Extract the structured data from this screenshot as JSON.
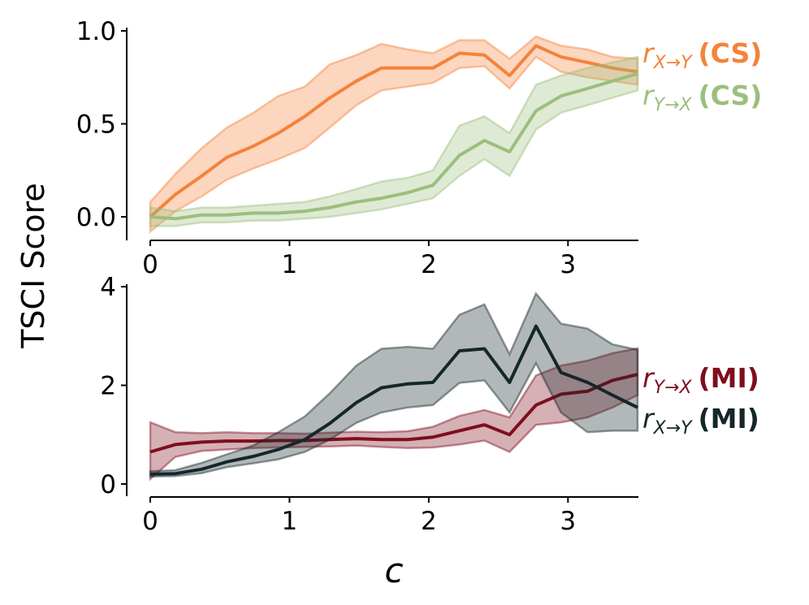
{
  "figure": {
    "ylabel": "TSCI Score",
    "xlabel": "c"
  },
  "colors": {
    "orange": "#f5823a",
    "green": "#9bbf7d",
    "dark": "#14272a",
    "maroon": "#7e0e1e"
  },
  "chart_data": [
    {
      "type": "line",
      "title": "",
      "xlabel": "",
      "ylabel": "",
      "xlim": [
        -0.1,
        3.5
      ],
      "ylim": [
        -0.13,
        1.01
      ],
      "xticks": [
        0,
        1,
        2,
        3
      ],
      "xtick_labels": [
        "0",
        "1",
        "2",
        "3"
      ],
      "yticks": [
        0.0,
        0.5,
        1.0
      ],
      "ytick_labels": [
        "0.0",
        "0.5",
        "1.0"
      ],
      "grid": false,
      "series": [
        {
          "name": "r_{X→Y} (CS)",
          "label_main": "r",
          "label_sub": "X→Y",
          "label_tag": "(CS)",
          "color_key": "orange",
          "x": [
            0,
            0.18,
            0.37,
            0.55,
            0.74,
            0.92,
            1.11,
            1.29,
            1.48,
            1.66,
            1.85,
            2.03,
            2.22,
            2.4,
            2.58,
            2.77,
            2.95,
            3.14,
            3.32,
            3.5
          ],
          "y": [
            0.0,
            0.12,
            0.22,
            0.32,
            0.38,
            0.45,
            0.54,
            0.64,
            0.73,
            0.8,
            0.8,
            0.8,
            0.88,
            0.87,
            0.76,
            0.92,
            0.86,
            0.83,
            0.8,
            0.78
          ],
          "lower": [
            -0.08,
            0.03,
            0.11,
            0.2,
            0.26,
            0.31,
            0.37,
            0.48,
            0.6,
            0.68,
            0.7,
            0.72,
            0.8,
            0.81,
            0.69,
            0.86,
            0.78,
            0.75,
            0.73,
            0.71
          ],
          "upper": [
            0.08,
            0.23,
            0.37,
            0.48,
            0.56,
            0.65,
            0.7,
            0.82,
            0.87,
            0.93,
            0.9,
            0.88,
            0.95,
            0.95,
            0.85,
            0.97,
            0.92,
            0.9,
            0.86,
            0.85
          ]
        },
        {
          "name": "r_{Y→X} (CS)",
          "label_main": "r",
          "label_sub": "Y→X",
          "label_tag": "(CS)",
          "color_key": "green",
          "x": [
            0,
            0.18,
            0.37,
            0.55,
            0.74,
            0.92,
            1.11,
            1.29,
            1.48,
            1.66,
            1.85,
            2.03,
            2.22,
            2.4,
            2.58,
            2.77,
            2.95,
            3.14,
            3.32,
            3.5
          ],
          "y": [
            0.0,
            -0.01,
            0.01,
            0.01,
            0.02,
            0.02,
            0.03,
            0.05,
            0.08,
            0.1,
            0.13,
            0.17,
            0.33,
            0.41,
            0.35,
            0.57,
            0.65,
            0.69,
            0.73,
            0.77
          ],
          "lower": [
            -0.05,
            -0.05,
            -0.03,
            -0.03,
            -0.02,
            -0.02,
            -0.01,
            0.0,
            0.02,
            0.04,
            0.07,
            0.1,
            0.22,
            0.31,
            0.22,
            0.47,
            0.56,
            0.6,
            0.64,
            0.68
          ],
          "upper": [
            0.05,
            0.03,
            0.05,
            0.05,
            0.06,
            0.07,
            0.08,
            0.11,
            0.15,
            0.19,
            0.21,
            0.25,
            0.49,
            0.54,
            0.45,
            0.71,
            0.76,
            0.8,
            0.83,
            0.86
          ]
        }
      ]
    },
    {
      "type": "line",
      "title": "",
      "xlabel": "c",
      "ylabel": "",
      "xlim": [
        -0.1,
        3.5
      ],
      "ylim": [
        -0.05,
        4.0
      ],
      "xticks": [
        0,
        1,
        2,
        3
      ],
      "xtick_labels": [
        "0",
        "1",
        "2",
        "3"
      ],
      "yticks": [
        0,
        2,
        4
      ],
      "ytick_labels": [
        "0",
        "2",
        "4"
      ],
      "grid": false,
      "series": [
        {
          "name": "r_{Y→X} (MI)",
          "label_main": "r",
          "label_sub": "Y→X",
          "label_tag": "(MI)",
          "color_key": "maroon",
          "x": [
            0,
            0.18,
            0.37,
            0.55,
            0.74,
            0.92,
            1.11,
            1.29,
            1.48,
            1.66,
            1.85,
            2.03,
            2.22,
            2.4,
            2.58,
            2.77,
            2.95,
            3.14,
            3.32,
            3.5
          ],
          "y": [
            0.65,
            0.8,
            0.85,
            0.87,
            0.87,
            0.88,
            0.88,
            0.9,
            0.92,
            0.9,
            0.9,
            0.95,
            1.08,
            1.2,
            1.0,
            1.6,
            1.82,
            1.88,
            2.1,
            2.22
          ],
          "lower": [
            0.1,
            0.55,
            0.67,
            0.7,
            0.73,
            0.74,
            0.75,
            0.76,
            0.78,
            0.75,
            0.73,
            0.74,
            0.8,
            0.88,
            0.65,
            1.2,
            1.25,
            1.35,
            1.55,
            1.8
          ],
          "upper": [
            1.25,
            1.05,
            1.03,
            1.05,
            1.03,
            1.03,
            1.02,
            1.04,
            1.06,
            1.05,
            1.07,
            1.16,
            1.38,
            1.5,
            1.35,
            2.2,
            2.4,
            2.5,
            2.65,
            2.75
          ]
        },
        {
          "name": "r_{X→Y} (MI)",
          "label_main": "r",
          "label_sub": "X→Y",
          "label_tag": "(MI)",
          "color_key": "dark",
          "x": [
            0,
            0.18,
            0.37,
            0.55,
            0.74,
            0.92,
            1.11,
            1.29,
            1.48,
            1.66,
            1.85,
            2.03,
            2.22,
            2.4,
            2.58,
            2.77,
            2.95,
            3.14,
            3.32,
            3.5
          ],
          "y": [
            0.2,
            0.21,
            0.3,
            0.45,
            0.56,
            0.7,
            0.9,
            1.23,
            1.65,
            1.95,
            2.03,
            2.06,
            2.7,
            2.74,
            2.06,
            3.2,
            2.26,
            2.06,
            1.8,
            1.55
          ],
          "lower": [
            0.15,
            0.16,
            0.22,
            0.34,
            0.42,
            0.5,
            0.65,
            0.9,
            1.24,
            1.45,
            1.55,
            1.6,
            2.05,
            2.1,
            1.45,
            2.45,
            1.45,
            1.05,
            1.08,
            1.08
          ],
          "upper": [
            0.26,
            0.28,
            0.43,
            0.6,
            0.78,
            1.05,
            1.37,
            1.84,
            2.4,
            2.74,
            2.78,
            2.74,
            3.43,
            3.64,
            2.63,
            3.86,
            3.25,
            3.15,
            2.83,
            2.72
          ]
        }
      ]
    }
  ]
}
